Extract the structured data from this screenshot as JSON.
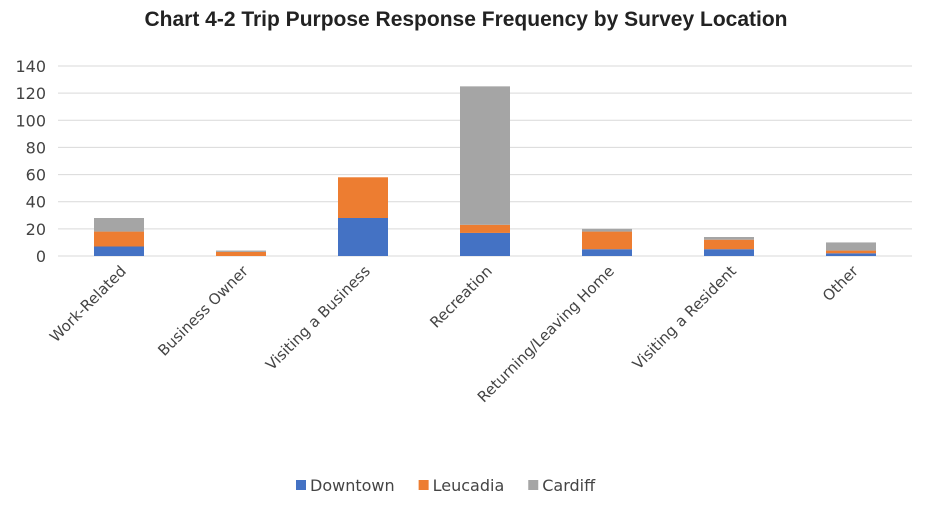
{
  "chart_data": {
    "type": "bar",
    "stacked": true,
    "title": "Chart 4-2  Trip Purpose Response Frequency by Survey Location",
    "categories": [
      "Work-Related",
      "Business Owner",
      "Visiting a Business",
      "Recreation",
      "Returning/Leaving Home",
      "Visiting a Resident",
      "Other"
    ],
    "series": [
      {
        "name": "Downtown",
        "color": "#4472C4",
        "values": [
          7,
          0,
          28,
          17,
          5,
          5,
          2
        ]
      },
      {
        "name": "Leucadia",
        "color": "#ED7D31",
        "values": [
          11,
          3,
          30,
          6,
          13,
          7,
          2
        ]
      },
      {
        "name": "Cardiff",
        "color": "#A5A5A5",
        "values": [
          10,
          1,
          0,
          102,
          2,
          2,
          6
        ]
      }
    ],
    "ylim": [
      0,
      140
    ],
    "yticks": [
      0,
      20,
      40,
      60,
      80,
      100,
      120,
      140
    ],
    "grid": true,
    "legend": "bottom"
  }
}
